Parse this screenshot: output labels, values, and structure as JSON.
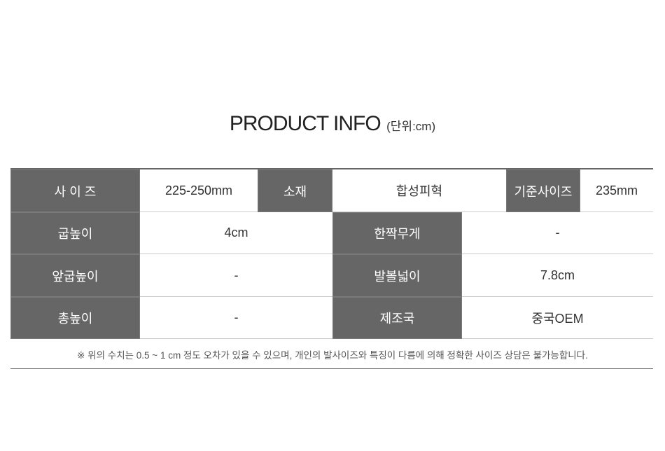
{
  "title": {
    "main": "PRODUCT INFO",
    "unit": "(단위:cm)"
  },
  "row1": [
    {
      "label": "사 이 즈",
      "value": "225-250mm"
    },
    {
      "label": "소재",
      "value": "합성피혁"
    },
    {
      "label": "기준사이즈",
      "value": "235mm"
    }
  ],
  "rows": [
    {
      "label_left": "굽높이",
      "value_left": "4cm",
      "label_right": "한짝무게",
      "value_right": "-"
    },
    {
      "label_left": "앞굽높이",
      "value_left": "-",
      "label_right": "발볼넓이",
      "value_right": "7.8cm"
    },
    {
      "label_left": "총높이",
      "value_left": "-",
      "label_right": "제조국",
      "value_right": "중국OEM"
    }
  ],
  "note": "※ 위의 수치는 0.5 ~ 1 cm 정도 오차가 있을 수 있으며, 개인의 발사이즈와 특징이 다름에 의해 정확한 사이즈 상담은 불가능합니다.",
  "colors": {
    "header_bg": "#666666",
    "header_text": "#ffffff",
    "border": "#cccccc"
  }
}
